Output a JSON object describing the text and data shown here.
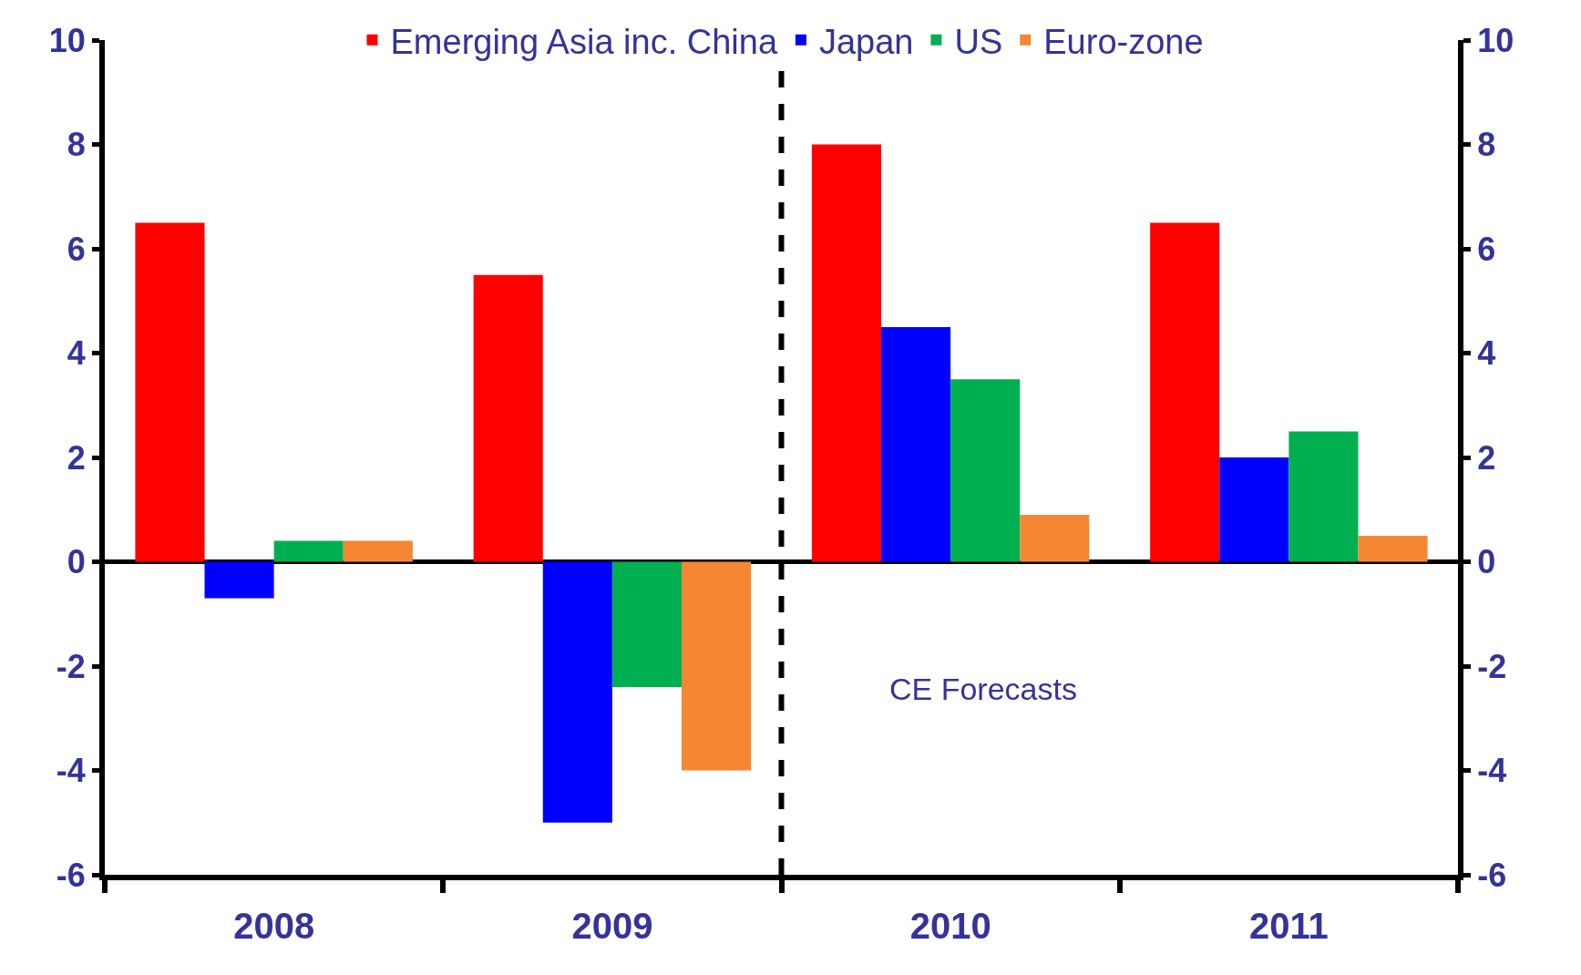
{
  "chart_data": {
    "type": "bar",
    "x": [
      2008,
      2009,
      2010,
      2011
    ],
    "xlim": [
      2007.5,
      2011.5
    ],
    "xticks": [
      {
        "value": 2007.5,
        "label": null
      },
      2008,
      {
        "value": 2008.5,
        "label": null
      },
      2009,
      {
        "value": 2009.5,
        "label": null
      },
      2010,
      {
        "value": 2010.5,
        "label": null
      },
      2011,
      {
        "value": 2011.5,
        "label": null
      }
    ],
    "series": [
      {
        "name": "Emerging Asia inc. China",
        "color": "#ff0000",
        "values": [
          6.5,
          5.5,
          8.0,
          6.5
        ]
      },
      {
        "name": "Japan",
        "color": "#0000ff",
        "values": [
          -0.7,
          -5.0,
          4.5,
          2.0
        ]
      },
      {
        "name": "US",
        "color": "#00b050",
        "values": [
          0.4,
          -2.4,
          3.5,
          2.5
        ]
      },
      {
        "name": "Euro-zone",
        "color": "#f58634",
        "values": [
          0.4,
          -4.0,
          0.9,
          0.5
        ]
      }
    ],
    "ylim": [
      -6,
      10
    ],
    "yticks": [
      -6,
      -4,
      -2,
      0,
      2,
      4,
      6,
      8,
      10
    ],
    "y2lim": [
      -6,
      10
    ],
    "y2ticks": [
      -6,
      -4,
      -2,
      0,
      2,
      4,
      6,
      8,
      10
    ],
    "ref_lines": [
      {
        "axis": "x",
        "value": 2009.5,
        "color": "#000000",
        "line_style": "dashed"
      }
    ],
    "annotations": [
      "CE Forecasts"
    ],
    "legend": "top",
    "grid": false
  }
}
